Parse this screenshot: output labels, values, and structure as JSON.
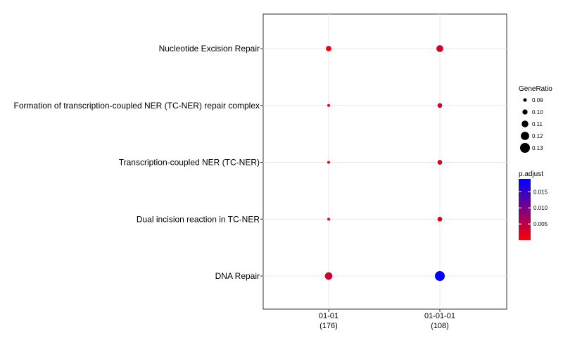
{
  "chart_data": {
    "type": "scatter",
    "title": "",
    "xlabel": "",
    "ylabel": "",
    "x_categories": [
      {
        "line1": "01-01",
        "line2": "(176)"
      },
      {
        "line1": "01-01-01",
        "line2": "(108)"
      }
    ],
    "y_categories": [
      "Nucleotide Excision Repair",
      "Formation of transcription-coupled NER (TC-NER) repair complex",
      "Transcription-coupled NER (TC-NER)",
      "Dual incision reaction in TC-NER",
      "DNA Repair"
    ],
    "points": [
      {
        "x": "01-01",
        "y": "Nucleotide Excision Repair",
        "gene_ratio": 0.102,
        "p_adjust": 0.0008
      },
      {
        "x": "01-01",
        "y": "Formation of transcription-coupled NER (TC-NER) repair complex",
        "gene_ratio": 0.085,
        "p_adjust": 0.0008
      },
      {
        "x": "01-01",
        "y": "Transcription-coupled NER (TC-NER)",
        "gene_ratio": 0.085,
        "p_adjust": 0.0008
      },
      {
        "x": "01-01",
        "y": "Dual incision reaction in TC-NER",
        "gene_ratio": 0.085,
        "p_adjust": 0.0008
      },
      {
        "x": "01-01",
        "y": "DNA Repair",
        "gene_ratio": 0.115,
        "p_adjust": 0.0035
      },
      {
        "x": "01-01-01",
        "y": "Nucleotide Excision Repair",
        "gene_ratio": 0.111,
        "p_adjust": 0.003
      },
      {
        "x": "01-01-01",
        "y": "Formation of transcription-coupled NER (TC-NER) repair complex",
        "gene_ratio": 0.097,
        "p_adjust": 0.003
      },
      {
        "x": "01-01-01",
        "y": "Transcription-coupled NER (TC-NER)",
        "gene_ratio": 0.097,
        "p_adjust": 0.003
      },
      {
        "x": "01-01-01",
        "y": "Dual incision reaction in TC-NER",
        "gene_ratio": 0.097,
        "p_adjust": 0.003
      },
      {
        "x": "01-01-01",
        "y": "DNA Repair",
        "gene_ratio": 0.13,
        "p_adjust": 0.019
      }
    ],
    "size_legend": {
      "title": "GeneRatio",
      "breaks": [
        0.09,
        0.1,
        0.11,
        0.12,
        0.13
      ],
      "labels": [
        "0.09",
        "0.10",
        "0.11",
        "0.12",
        "0.13"
      ]
    },
    "color_legend": {
      "title": "p.adjust",
      "range": [
        0,
        0.019
      ],
      "breaks": [
        0.005,
        0.01,
        0.015
      ],
      "labels": [
        "0.005",
        "0.010",
        "0.015"
      ],
      "low_color": "#ff0000",
      "high_color": "#0000ff"
    },
    "grid": true,
    "legend_position": "right"
  }
}
